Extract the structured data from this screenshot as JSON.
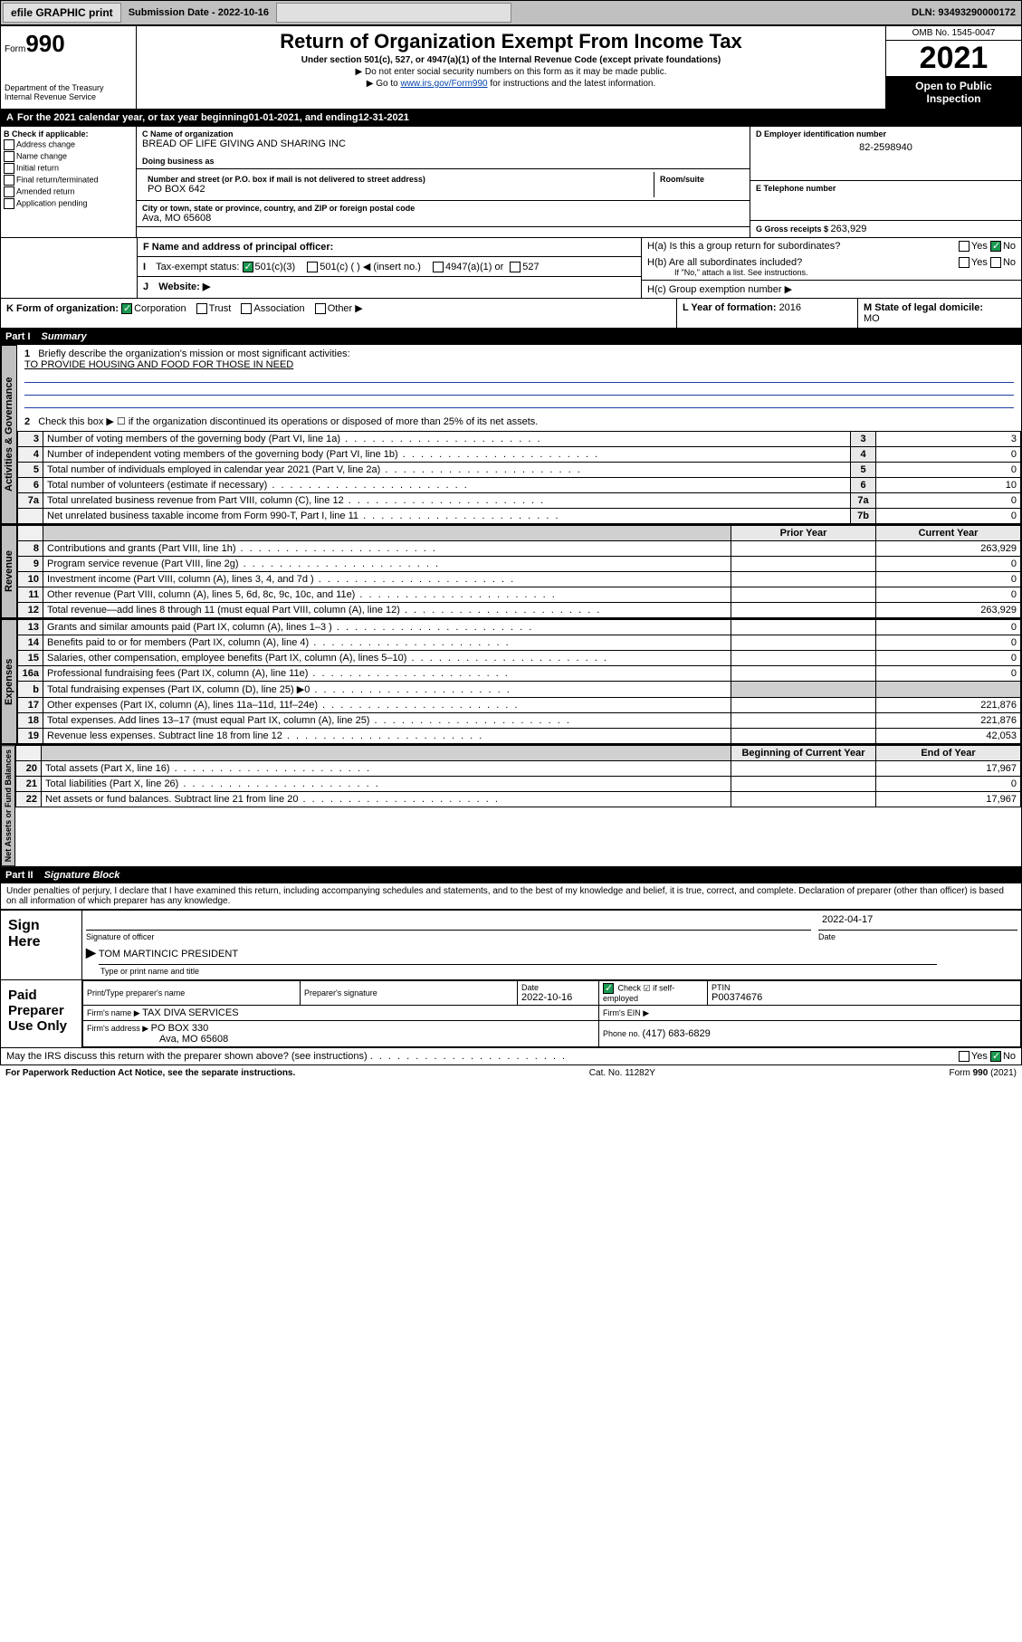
{
  "topbar": {
    "efile": "efile GRAPHIC print",
    "submission_label": "Submission Date - ",
    "submission_date": "2022-10-16",
    "dln_label": "DLN: ",
    "dln": "93493290000172"
  },
  "header": {
    "form_word": "Form",
    "form_num": "990",
    "dept": "Department of the Treasury",
    "irs": "Internal Revenue Service",
    "title": "Return of Organization Exempt From Income Tax",
    "subtitle": "Under section 501(c), 527, or 4947(a)(1) of the Internal Revenue Code (except private foundations)",
    "note1": "▶ Do not enter social security numbers on this form as it may be made public.",
    "note2_pre": "▶ Go to ",
    "note2_link": "www.irs.gov/Form990",
    "note2_post": " for instructions and the latest information.",
    "omb": "OMB No. 1545-0047",
    "year": "2021",
    "open": "Open to Public Inspection"
  },
  "period": {
    "text_pre": "For the 2021 calendar year, or tax year beginning ",
    "begin": "01-01-2021",
    "text_mid": " , and ending ",
    "end": "12-31-2021"
  },
  "boxB": {
    "label": "B Check if applicable:",
    "opts": [
      "Address change",
      "Name change",
      "Initial return",
      "Final return/terminated",
      "Amended return",
      "Application pending"
    ]
  },
  "boxC": {
    "name_lbl": "C Name of organization",
    "name": "BREAD OF LIFE GIVING AND SHARING INC",
    "dba_lbl": "Doing business as",
    "dba": "",
    "street_lbl": "Number and street (or P.O. box if mail is not delivered to street address)",
    "street": "PO BOX 642",
    "room_lbl": "Room/suite",
    "city_lbl": "City or town, state or province, country, and ZIP or foreign postal code",
    "city": "Ava, MO  65608"
  },
  "boxD": {
    "lbl": "D Employer identification number",
    "val": "82-2598940"
  },
  "boxE": {
    "lbl": "E Telephone number",
    "val": ""
  },
  "boxG": {
    "lbl": "G Gross receipts $ ",
    "val": "263,929"
  },
  "boxF": {
    "lbl": "F Name and address of principal officer:",
    "val": ""
  },
  "boxH": {
    "a": "H(a)  Is this a group return for subordinates?",
    "b": "H(b)  Are all subordinates included?",
    "b_note": "If \"No,\" attach a list. See instructions.",
    "c": "H(c)  Group exemption number ▶"
  },
  "boxI": {
    "lbl": "Tax-exempt status:",
    "o1": "501(c)(3)",
    "o2": "501(c) (  ) ◀ (insert no.)",
    "o3": "4947(a)(1) or",
    "o4": "527"
  },
  "boxJ": {
    "lbl": "Website: ▶",
    "val": ""
  },
  "boxK": {
    "lbl": "K Form of organization:",
    "o1": "Corporation",
    "o2": "Trust",
    "o3": "Association",
    "o4": "Other ▶"
  },
  "boxL": {
    "lbl": "L Year of formation: ",
    "val": "2016"
  },
  "boxM": {
    "lbl": "M State of legal domicile:",
    "val": "MO"
  },
  "part1": {
    "part": "Part I",
    "title": "Summary",
    "q1_lbl": "Briefly describe the organization's mission or most significant activities:",
    "q1_val": "TO PROVIDE HOUSING AND FOOD FOR THOSE IN NEED",
    "q2": "Check this box ▶ ☐  if the organization discontinued its operations or disposed of more than 25% of its net assets.",
    "rows_gov": [
      {
        "n": "3",
        "t": "Number of voting members of the governing body (Part VI, line 1a)",
        "c": "3",
        "v": "3"
      },
      {
        "n": "4",
        "t": "Number of independent voting members of the governing body (Part VI, line 1b)",
        "c": "4",
        "v": "0"
      },
      {
        "n": "5",
        "t": "Total number of individuals employed in calendar year 2021 (Part V, line 2a)",
        "c": "5",
        "v": "0"
      },
      {
        "n": "6",
        "t": "Total number of volunteers (estimate if necessary)",
        "c": "6",
        "v": "10"
      },
      {
        "n": "7a",
        "t": "Total unrelated business revenue from Part VIII, column (C), line 12",
        "c": "7a",
        "v": "0"
      },
      {
        "n": "",
        "t": "Net unrelated business taxable income from Form 990-T, Part I, line 11",
        "c": "7b",
        "v": "0"
      }
    ],
    "hdr_prior": "Prior Year",
    "hdr_curr": "Current Year",
    "rows_rev": [
      {
        "n": "8",
        "t": "Contributions and grants (Part VIII, line 1h)",
        "p": "",
        "c": "263,929"
      },
      {
        "n": "9",
        "t": "Program service revenue (Part VIII, line 2g)",
        "p": "",
        "c": "0"
      },
      {
        "n": "10",
        "t": "Investment income (Part VIII, column (A), lines 3, 4, and 7d )",
        "p": "",
        "c": "0"
      },
      {
        "n": "11",
        "t": "Other revenue (Part VIII, column (A), lines 5, 6d, 8c, 9c, 10c, and 11e)",
        "p": "",
        "c": "0"
      },
      {
        "n": "12",
        "t": "Total revenue—add lines 8 through 11 (must equal Part VIII, column (A), line 12)",
        "p": "",
        "c": "263,929"
      }
    ],
    "rows_exp": [
      {
        "n": "13",
        "t": "Grants and similar amounts paid (Part IX, column (A), lines 1–3 )",
        "p": "",
        "c": "0"
      },
      {
        "n": "14",
        "t": "Benefits paid to or for members (Part IX, column (A), line 4)",
        "p": "",
        "c": "0"
      },
      {
        "n": "15",
        "t": "Salaries, other compensation, employee benefits (Part IX, column (A), lines 5–10)",
        "p": "",
        "c": "0"
      },
      {
        "n": "16a",
        "t": "Professional fundraising fees (Part IX, column (A), line 11e)",
        "p": "",
        "c": "0"
      },
      {
        "n": "b",
        "t": "Total fundraising expenses (Part IX, column (D), line 25) ▶0",
        "p": "grey",
        "c": "grey"
      },
      {
        "n": "17",
        "t": "Other expenses (Part IX, column (A), lines 11a–11d, 11f–24e)",
        "p": "",
        "c": "221,876"
      },
      {
        "n": "18",
        "t": "Total expenses. Add lines 13–17 (must equal Part IX, column (A), line 25)",
        "p": "",
        "c": "221,876"
      },
      {
        "n": "19",
        "t": "Revenue less expenses. Subtract line 18 from line 12",
        "p": "",
        "c": "42,053"
      }
    ],
    "hdr_boy": "Beginning of Current Year",
    "hdr_eoy": "End of Year",
    "rows_bal": [
      {
        "n": "20",
        "t": "Total assets (Part X, line 16)",
        "p": "",
        "c": "17,967"
      },
      {
        "n": "21",
        "t": "Total liabilities (Part X, line 26)",
        "p": "",
        "c": "0"
      },
      {
        "n": "22",
        "t": "Net assets or fund balances. Subtract line 21 from line 20",
        "p": "",
        "c": "17,967"
      }
    ],
    "vtabs": {
      "gov": "Activities & Governance",
      "rev": "Revenue",
      "exp": "Expenses",
      "bal": "Net Assets or Fund Balances"
    }
  },
  "part2": {
    "part": "Part II",
    "title": "Signature Block",
    "decl": "Under penalties of perjury, I declare that I have examined this return, including accompanying schedules and statements, and to the best of my knowledge and belief, it is true, correct, and complete. Declaration of preparer (other than officer) is based on all information of which preparer has any knowledge.",
    "sign_here": "Sign Here",
    "sig_officer": "Signature of officer",
    "sig_date": "Date",
    "sig_date_val": "2022-04-17",
    "officer_name": "TOM MARTINCIC PRESIDENT",
    "type_name": "Type or print name and title",
    "paid": "Paid Preparer Use Only",
    "prep_name_lbl": "Print/Type preparer's name",
    "prep_sig_lbl": "Preparer's signature",
    "prep_date_lbl": "Date",
    "prep_date_val": "2022-10-16",
    "check_self": "Check ☑ if self-employed",
    "ptin_lbl": "PTIN",
    "ptin_val": "P00374676",
    "firm_name_lbl": "Firm's name    ▶ ",
    "firm_name": "TAX DIVA SERVICES",
    "firm_ein_lbl": "Firm's EIN ▶",
    "firm_addr_lbl": "Firm's address ▶ ",
    "firm_addr1": "PO BOX 330",
    "firm_addr2": "Ava, MO  65608",
    "phone_lbl": "Phone no. ",
    "phone": "(417) 683-6829",
    "may_irs": "May the IRS discuss this return with the preparer shown above? (see instructions)"
  },
  "footer": {
    "left": "For Paperwork Reduction Act Notice, see the separate instructions.",
    "mid": "Cat. No. 11282Y",
    "right": "Form 990 (2021)"
  },
  "yesno": {
    "yes": "Yes",
    "no": "No"
  }
}
